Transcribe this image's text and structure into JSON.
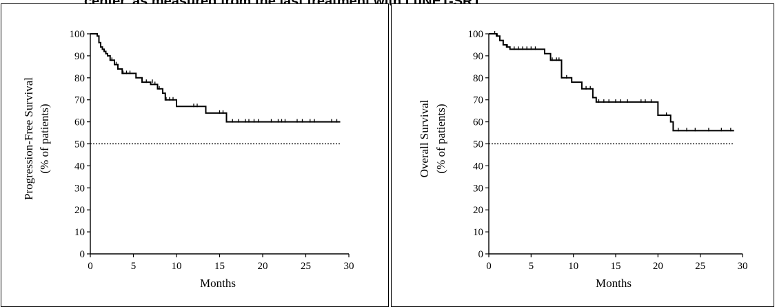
{
  "figure": {
    "title": "center, as measured from the last treatment with LuNET-SRT"
  },
  "chart_data": [
    {
      "type": "line",
      "subtype": "kaplan-meier",
      "xlabel": "Months",
      "ylabel_lines": [
        "Progression-Free Survival",
        "(% of patients)"
      ],
      "xlim": [
        0,
        30
      ],
      "ylim": [
        0,
        100
      ],
      "xticks": [
        0,
        5,
        10,
        15,
        20,
        25,
        30
      ],
      "yticks": [
        0,
        10,
        20,
        30,
        40,
        50,
        60,
        70,
        80,
        90,
        100
      ],
      "reference_line": {
        "y": 50,
        "x_range": [
          0,
          29
        ],
        "style": "dotted"
      },
      "series": [
        {
          "x": [
            0,
            0.8,
            1.0,
            1.2,
            1.4,
            1.6,
            1.8,
            2.0,
            2.3,
            2.8,
            3.2,
            3.7,
            5.3,
            6.0,
            7.0,
            7.8,
            8.4,
            8.7,
            10.0,
            13.4,
            15.8,
            29
          ],
          "y": [
            100,
            99,
            96,
            94,
            93,
            92,
            91,
            90,
            88,
            86,
            84,
            82,
            80,
            78,
            77,
            75,
            73,
            70,
            67,
            64,
            60,
            60
          ]
        }
      ],
      "censor_marks": {
        "x": [
          2.5,
          3.0,
          3.8,
          4.2,
          4.6,
          6.5,
          7.2,
          7.5,
          8.0,
          8.8,
          9.2,
          9.6,
          12.0,
          12.4,
          15.0,
          15.4,
          16.5,
          17.2,
          18.0,
          18.4,
          19.0,
          19.5,
          21.0,
          21.8,
          22.2,
          22.6,
          24.0,
          24.6,
          25.5,
          26.0,
          28.0,
          28.6
        ],
        "y": [
          88,
          86,
          82,
          82,
          82,
          78,
          78,
          77,
          75,
          70,
          70,
          70,
          67,
          67,
          64,
          64,
          60,
          60,
          60,
          60,
          60,
          60,
          60,
          60,
          60,
          60,
          60,
          60,
          60,
          60,
          60,
          60
        ]
      }
    },
    {
      "type": "line",
      "subtype": "kaplan-meier",
      "xlabel": "Months",
      "ylabel_lines": [
        "Overall Survival",
        "(% of patients)"
      ],
      "xlim": [
        0,
        30
      ],
      "ylim": [
        0,
        100
      ],
      "xticks": [
        0,
        5,
        10,
        15,
        20,
        25,
        30
      ],
      "yticks": [
        0,
        10,
        20,
        30,
        40,
        50,
        60,
        70,
        80,
        90,
        100
      ],
      "reference_line": {
        "y": 50,
        "x_range": [
          0,
          29
        ],
        "style": "dotted"
      },
      "series": [
        {
          "x": [
            0,
            0.9,
            1.3,
            1.7,
            2.1,
            2.5,
            6.6,
            7.3,
            8.6,
            9.8,
            11.0,
            12.3,
            12.7,
            20.0,
            21.5,
            21.8,
            29
          ],
          "y": [
            100,
            99,
            97,
            95,
            94,
            93,
            91,
            88,
            80,
            78,
            75,
            71,
            69,
            63,
            60,
            56,
            56
          ]
        }
      ],
      "censor_marks": {
        "x": [
          0.7,
          1.0,
          2.2,
          3.0,
          3.5,
          4.0,
          4.5,
          5.0,
          5.5,
          7.5,
          8.0,
          8.3,
          9.2,
          11.5,
          12.0,
          13.0,
          13.6,
          14.2,
          15.0,
          15.6,
          16.4,
          18.0,
          18.5,
          19.2,
          21.0,
          22.4,
          23.4,
          24.4,
          26.0,
          27.5,
          28.6
        ],
        "y": [
          100,
          99,
          94,
          93,
          93,
          93,
          93,
          93,
          93,
          88,
          88,
          88,
          80,
          75,
          75,
          69,
          69,
          69,
          69,
          69,
          69,
          69,
          69,
          69,
          63,
          56,
          56,
          56,
          56,
          56,
          56
        ]
      }
    }
  ]
}
